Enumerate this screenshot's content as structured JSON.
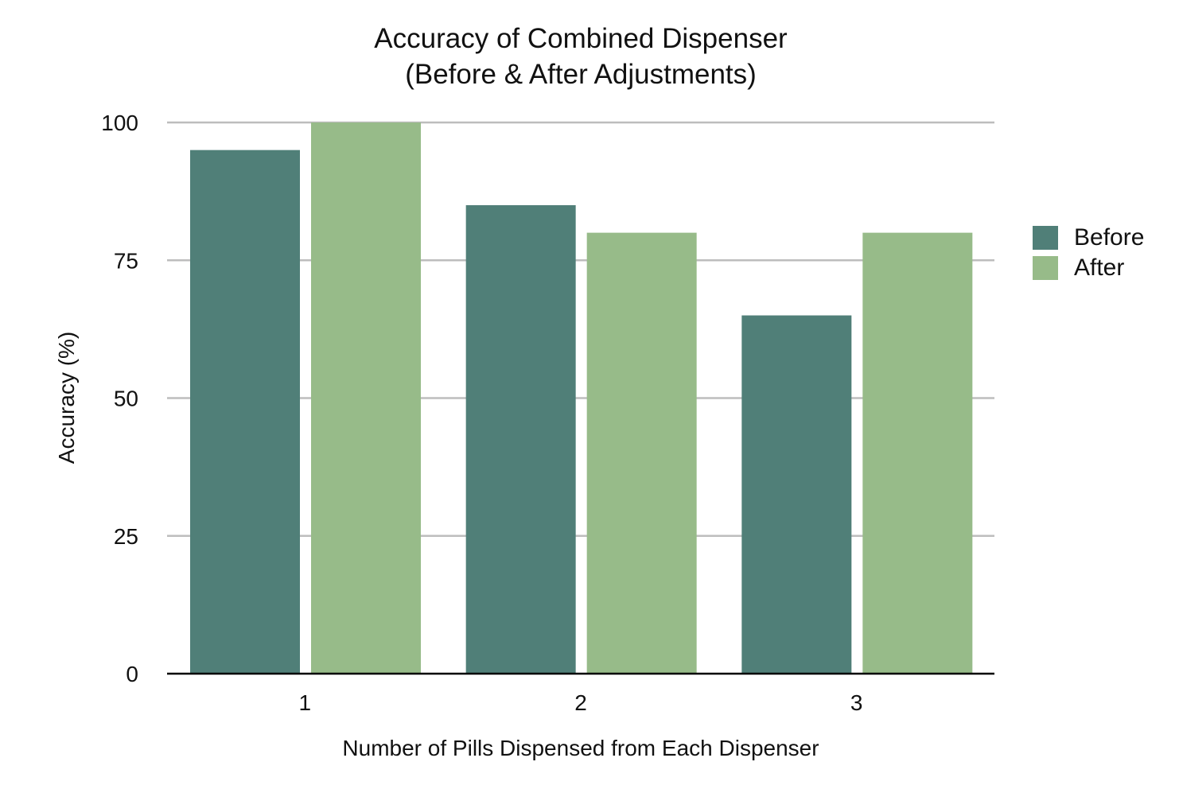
{
  "chart_data": {
    "type": "bar",
    "title": "Accuracy of Combined Dispenser",
    "subtitle": "(Before & After Adjustments)",
    "xlabel": "Number of Pills Dispensed from Each Dispenser",
    "ylabel": "Accuracy (%)",
    "categories": [
      "1",
      "2",
      "3"
    ],
    "series": [
      {
        "name": "Before",
        "values": [
          95,
          85,
          65
        ],
        "color": "#507f78"
      },
      {
        "name": "After",
        "values": [
          100,
          80,
          80
        ],
        "color": "#97bb89"
      }
    ],
    "ylim": [
      0,
      100
    ],
    "yticks": [
      0,
      25,
      50,
      75,
      100
    ],
    "grid": true,
    "legend": "right"
  }
}
